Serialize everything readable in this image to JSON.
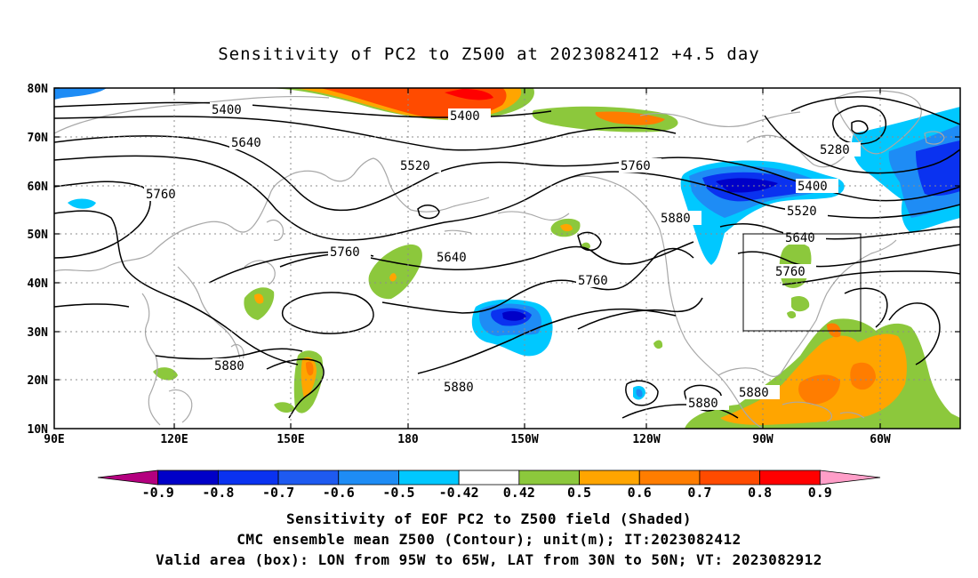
{
  "title": "Sensitivity of PC2 to Z500 at 2023082412 +4.5 day",
  "map": {
    "lon_range": [
      "90E",
      "50W"
    ],
    "lat_range": [
      "10N",
      "80N"
    ],
    "lat_ticks": [
      "80N",
      "70N",
      "60N",
      "50N",
      "40N",
      "30N",
      "20N",
      "10N"
    ],
    "lon_ticks": [
      "90E",
      "120E",
      "150E",
      "180",
      "150W",
      "120W",
      "90W",
      "60W"
    ],
    "contour_labels": [
      "5400",
      "5400",
      "5640",
      "5520",
      "5760",
      "5760",
      "5880",
      "5280",
      "5400",
      "5520",
      "5640",
      "5760",
      "5640",
      "5760",
      "5760",
      "5880",
      "5880",
      "5880",
      "5880"
    ],
    "valid_box": {
      "lon": [
        "95W",
        "65W"
      ],
      "lat": [
        "30N",
        "50N"
      ]
    }
  },
  "colorbar": {
    "labels": [
      "-0.9",
      "-0.8",
      "-0.7",
      "-0.6",
      "-0.5",
      "-0.42",
      "0.42",
      "0.5",
      "0.6",
      "0.7",
      "0.8",
      "0.9"
    ],
    "colors": [
      "#b4007f",
      "#0000c8",
      "#0a32f0",
      "#1e5af0",
      "#1e8cf5",
      "#00c8ff",
      "#ffffff",
      "#8cc83c",
      "#ffa500",
      "#ff7d00",
      "#ff4b00",
      "#ff0000",
      "#ff9ec8"
    ]
  },
  "captions": {
    "line1": "Sensitivity of EOF PC2 to Z500 field (Shaded)",
    "line2": "CMC ensemble mean Z500 (Contour); unit(m); IT:2023082412",
    "line3": "Valid area (box): LON from 95W to 65W, LAT from 30N to 50N; VT: 2023082912"
  }
}
